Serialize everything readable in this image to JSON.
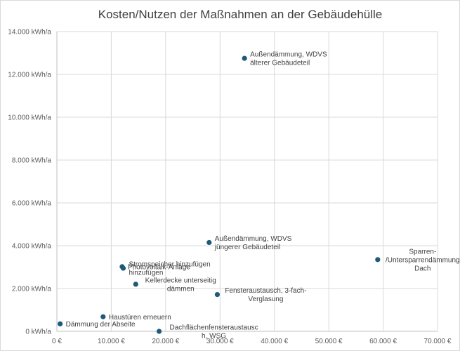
{
  "chart_data": {
    "type": "scatter",
    "title": "Kosten/Nutzen der Maßnahmen an der Gebäudehülle",
    "xlabel": "",
    "ylabel": "",
    "xlim": [
      0,
      70000
    ],
    "ylim": [
      0,
      14000
    ],
    "grid": {
      "x": true,
      "y": true
    },
    "marker_color": "#1f5a7a",
    "x_ticks": [
      {
        "value": 0,
        "label": "0 €"
      },
      {
        "value": 10000,
        "label": "10.000 €"
      },
      {
        "value": 20000,
        "label": "20.000 €"
      },
      {
        "value": 30000,
        "label": "30.000 €"
      },
      {
        "value": 40000,
        "label": "40.000 €"
      },
      {
        "value": 50000,
        "label": "50.000 €"
      },
      {
        "value": 60000,
        "label": "60.000 €"
      },
      {
        "value": 70000,
        "label": "70.000 €"
      }
    ],
    "y_ticks": [
      {
        "value": 0,
        "label": "0 kWh/a"
      },
      {
        "value": 2000,
        "label": "2.000 kWh/a"
      },
      {
        "value": 4000,
        "label": "4.000 kWh/a"
      },
      {
        "value": 6000,
        "label": "6.000 kWh/a"
      },
      {
        "value": 8000,
        "label": "8.000 kWh/a"
      },
      {
        "value": 10000,
        "label": "10.000 kWh/a"
      },
      {
        "value": 12000,
        "label": "12.000 kWh/a"
      },
      {
        "value": 14000,
        "label": "14.000 kWh/a"
      }
    ],
    "points": [
      {
        "x": 34500,
        "y": 12750,
        "label": [
          "Außendämmung, WDVS",
          "älterer Gebäudeteil"
        ],
        "label_pos": "right",
        "label_align": "start"
      },
      {
        "x": 28000,
        "y": 4150,
        "label": [
          "Außendämmung, WDVS",
          "jüngerer Gebäudeteil"
        ],
        "label_pos": "right",
        "label_align": "start"
      },
      {
        "x": 59000,
        "y": 3350,
        "label": [
          "Sparren-",
          "/Untersparrendämmung",
          "Dach"
        ],
        "label_pos": "right",
        "label_align": "center"
      },
      {
        "x": 12000,
        "y": 3020,
        "label": [
          "Photovoltaik-Anlage"
        ],
        "label_pos": "right",
        "label_align": "start"
      },
      {
        "x": 12200,
        "y": 2950,
        "label": [
          "Stromspeicher hinzufügen",
          "hinzufügen"
        ],
        "label_pos": "right",
        "label_align": "start"
      },
      {
        "x": 14500,
        "y": 2200,
        "label": [
          "Kellerdecke unterseitig",
          "dämmen"
        ],
        "label_pos": "right",
        "label_align": "center"
      },
      {
        "x": 29500,
        "y": 1720,
        "label": [
          "Fensteraustausch, 3-fach-",
          "Verglasung"
        ],
        "label_pos": "right",
        "label_align": "center"
      },
      {
        "x": 8500,
        "y": 680,
        "label": [
          "Haustüren erneuern"
        ],
        "label_pos": "right",
        "label_align": "start"
      },
      {
        "x": 600,
        "y": 350,
        "label": [
          "Dämmung der Abseite"
        ],
        "label_pos": "right",
        "label_align": "start"
      },
      {
        "x": 18800,
        "y": 0,
        "label": [
          "Dachflächenfensteraustausc",
          "h, WSG"
        ],
        "label_pos": "right",
        "label_align": "center"
      }
    ]
  }
}
